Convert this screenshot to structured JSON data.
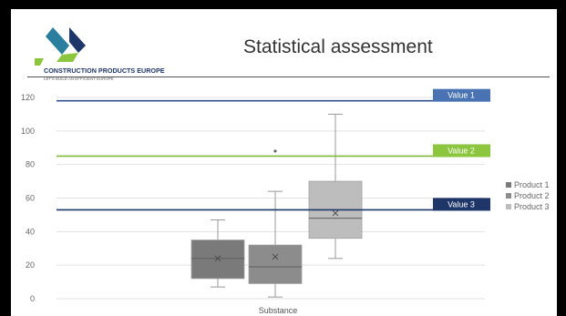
{
  "header": {
    "title": "Statistical assessment",
    "logo_text": "CONSTRUCTION PRODUCTS EUROPE",
    "logo_tagline": "LET'S BUILD AN EFFICIENT EUROPE"
  },
  "chart_data": {
    "type": "box",
    "categories": [
      "Substance"
    ],
    "xlabel": "Substance",
    "ylim": [
      0,
      120
    ],
    "yticks": [
      0,
      20,
      40,
      60,
      80,
      100,
      120
    ],
    "grid": true,
    "legend_position": "right",
    "series": [
      {
        "name": "Product 1",
        "color": "#7a7a7a",
        "min": 7,
        "q1": 12,
        "median": 24,
        "q3": 35,
        "max": 47,
        "mean": 24,
        "outliers": []
      },
      {
        "name": "Product 2",
        "color": "#8c8c8c",
        "min": 1,
        "q1": 9,
        "median": 19,
        "q3": 32,
        "max": 64,
        "mean": 25,
        "outliers": [
          88
        ]
      },
      {
        "name": "Product 3",
        "color": "#bdbdbd",
        "min": 24,
        "q1": 36,
        "median": 48,
        "q3": 70,
        "max": 110,
        "mean": 51,
        "outliers": []
      }
    ],
    "reference_lines": [
      {
        "label": "Value 1",
        "value": 118,
        "color": "#2f4f8f",
        "tag_color": "#4a73b3"
      },
      {
        "label": "Value 2",
        "value": 85,
        "color": "#7fb83a",
        "tag_color": "#8cc63f"
      },
      {
        "label": "Value 3",
        "value": 53,
        "color": "#1f3768",
        "tag_color": "#1f3768"
      }
    ]
  }
}
